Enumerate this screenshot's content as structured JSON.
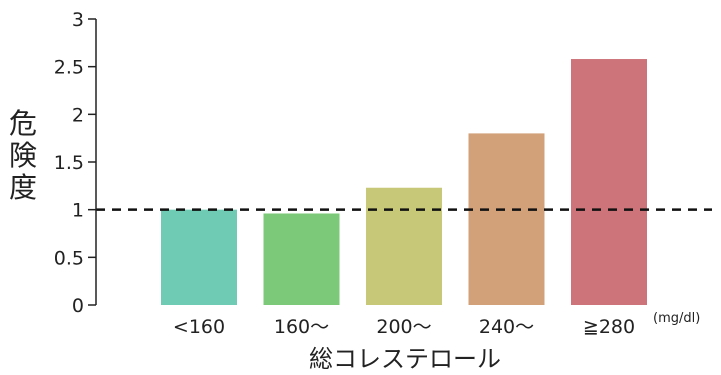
{
  "chart_data": {
    "type": "bar",
    "categories": [
      "<160",
      "160～",
      "200～",
      "240～",
      "≧280"
    ],
    "values": [
      1.0,
      0.96,
      1.23,
      1.8,
      2.58
    ],
    "colors": [
      "#6fcbb3",
      "#7dc97a",
      "#c7c878",
      "#d2a079",
      "#cd737a"
    ],
    "xlabel": "総コレステロール",
    "ylabel": "危険度",
    "unit": "(mg/dl)",
    "ylim": [
      0,
      3
    ],
    "yticks": [
      "0",
      "0.5",
      "1",
      "1.5",
      "2",
      "2.5",
      "3"
    ],
    "reference_line": 1,
    "grid": false
  }
}
